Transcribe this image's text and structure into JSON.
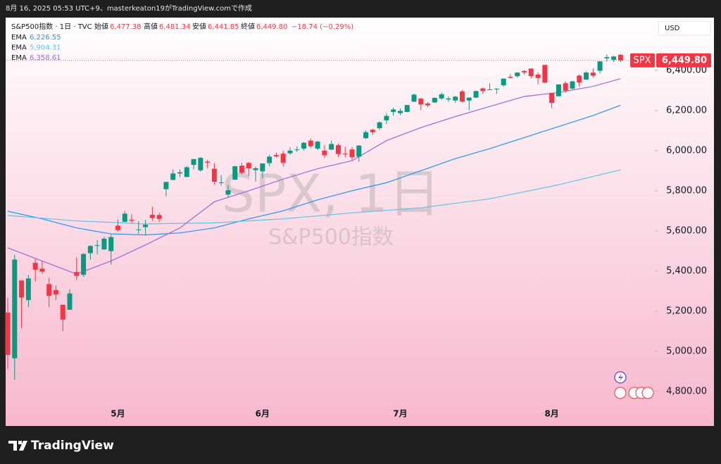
{
  "header": {
    "created": "8月 16, 2025 05:53 UTC+9、masterkeaton19がTradingView.comで作成",
    "currency": "USD",
    "brand": "TradingView"
  },
  "legend": {
    "symbol": "S&P500指数 · 1日 · TVC",
    "open_label": "始値",
    "open": "6,477.38",
    "high_label": "高値",
    "high": "6,481.34",
    "low_label": "安値",
    "low": "6,441.85",
    "close_label": "終値",
    "close": "6,449.80",
    "change": "−18.74 (−0.29%)"
  },
  "chart_data": {
    "type": "candlestick",
    "watermark": "SPX, 1日",
    "watermark_sub": "S&P500指数",
    "categories": [
      null,
      null,
      null,
      null,
      null,
      null,
      null,
      null,
      null,
      null,
      null,
      null,
      null,
      null,
      null,
      null,
      "5月",
      null,
      null,
      null,
      null,
      null,
      null,
      null,
      null,
      null,
      null,
      null,
      null,
      null,
      null,
      null,
      null,
      null,
      null,
      null,
      null,
      "6月",
      null,
      null,
      null,
      null,
      null,
      null,
      null,
      null,
      null,
      null,
      null,
      null,
      null,
      null,
      null,
      null,
      null,
      null,
      null,
      "7月",
      null,
      null,
      null,
      null,
      null,
      null,
      null,
      null,
      null,
      null,
      null,
      null,
      null,
      null,
      null,
      null,
      null,
      null,
      null,
      null,
      null,
      "8月",
      null,
      null,
      null,
      null,
      null,
      null,
      null,
      null,
      null,
      null
    ],
    "open": [
      5193,
      4965,
      5353,
      5255,
      5441,
      5412,
      5335,
      5305,
      5232,
      5207,
      5395,
      5381,
      5489,
      5529,
      5508,
      5499,
      5626,
      5645,
      5655,
      5605,
      5619,
      5680,
      5679,
      5808,
      5854,
      5886,
      5869,
      5929,
      5902,
      5945,
      5910,
      5842,
      5781,
      5855,
      5925,
      5939,
      5903,
      5897,
      5938,
      5978,
      5985,
      5987,
      6004,
      6010,
      6050,
      6010,
      6000,
      6005,
      6027,
      5985,
      6006,
      5970,
      6062,
      6104,
      6112,
      6151,
      6193,
      6187,
      6193,
      6244,
      6259,
      6235,
      6240,
      6260,
      6255,
      6250,
      6295,
      6250,
      6264,
      6310,
      6304,
      6307,
      6326,
      6368,
      6371,
      6397,
      6409,
      6379,
      6427,
      6287,
      6271,
      6336,
      6309,
      6374,
      6354,
      6389,
      6398,
      6460,
      6453,
      6477.38
    ],
    "high": [
      5267,
      5481,
      5353,
      5381,
      5460,
      5450,
      5367,
      5328,
      5232,
      5309,
      5469,
      5489,
      5528,
      5554,
      5571,
      5581,
      5658,
      5700,
      5683,
      5649,
      5655,
      5720,
      5691,
      5844,
      5906,
      5907,
      5924,
      5958,
      5968,
      5954,
      5938,
      5878,
      5829,
      5924,
      5939,
      5943,
      5921,
      5937,
      5981,
      5990,
      5999,
      6016,
      6021,
      6043,
      6060,
      6050,
      6027,
      6050,
      6035,
      6019,
      6018,
      6028,
      6101,
      6109,
      6146,
      6187,
      6215,
      6210,
      6228,
      6284,
      6263,
      6242,
      6265,
      6290,
      6270,
      6273,
      6302,
      6266,
      6299,
      6315,
      6336,
      6310,
      6360,
      6381,
      6390,
      6402,
      6410,
      6390,
      6427,
      6288,
      6330,
      6346,
      6349,
      6379,
      6395,
      6409,
      6446,
      6480,
      6473,
      6481.34
    ],
    "low": [
      4910,
      4857,
      5115,
      5220,
      5348,
      5386,
      5220,
      5255,
      5101,
      5207,
      5356,
      5371,
      5456,
      5483,
      5505,
      5433,
      5597,
      5644,
      5637,
      5587,
      5578,
      5650,
      5644,
      5773,
      5853,
      5868,
      5867,
      5907,
      5895,
      5913,
      5830,
      5826,
      5767,
      5855,
      5882,
      5874,
      5847,
      5862,
      5922,
      5966,
      5921,
      5979,
      5994,
      6001,
      6012,
      6003,
      5964,
      6004,
      5969,
      5967,
      5953,
      5944,
      6058,
      6079,
      6103,
      6132,
      6174,
      6177,
      6191,
      6242,
      6201,
      6217,
      6237,
      6252,
      6243,
      6239,
      6242,
      6201,
      6264,
      6282,
      6302,
      6282,
      6318,
      6360,
      6364,
      6381,
      6361,
      6331,
      6336,
      6212,
      6271,
      6289,
      6304,
      6318,
      6354,
      6364,
      6384,
      6443,
      6441,
      6441.85
    ],
    "close": [
      4982,
      5457,
      5268,
      5363,
      5406,
      5397,
      5276,
      5283,
      5158,
      5288,
      5376,
      5485,
      5525,
      5529,
      5561,
      5569,
      5604,
      5686,
      5650,
      5607,
      5631,
      5664,
      5660,
      5844,
      5886,
      5892,
      5917,
      5958,
      5964,
      5940,
      5845,
      5842,
      5803,
      5922,
      5889,
      5912,
      5912,
      5936,
      5970,
      5971,
      5939,
      6000,
      6006,
      6039,
      6022,
      6045,
      5977,
      6033,
      5983,
      5981,
      5967,
      6025,
      6092,
      6092,
      6141,
      6173,
      6205,
      6198,
      6227,
      6279,
      6230,
      6226,
      6263,
      6281,
      6260,
      6269,
      6244,
      6264,
      6297,
      6297,
      6305,
      6309,
      6359,
      6363,
      6389,
      6390,
      6371,
      6362,
      6339,
      6238,
      6330,
      6299,
      6345,
      6340,
      6389,
      6374,
      6445,
      6466,
      6469,
      6449.8
    ],
    "up_color": "#089981",
    "down_color": "#f23645",
    "series": [
      {
        "name": "EMA",
        "color": "#2196f3",
        "value_label": "6,226.55",
        "x": [
          0,
          5,
          10,
          15,
          20,
          25,
          30,
          35,
          40,
          45,
          50,
          55,
          60,
          65,
          70,
          75,
          80,
          85,
          89
        ],
        "values": [
          5698,
          5660,
          5615,
          5585,
          5580,
          5590,
          5615,
          5660,
          5700,
          5755,
          5800,
          5840,
          5900,
          5960,
          6010,
          6065,
          6120,
          6175,
          6226.55
        ]
      },
      {
        "name": "EMA",
        "color": "#5ec4e8",
        "value_label": "5,904.31",
        "x": [
          0,
          10,
          20,
          30,
          40,
          50,
          60,
          70,
          80,
          89
        ],
        "values": [
          5677,
          5650,
          5635,
          5640,
          5660,
          5690,
          5715,
          5760,
          5830,
          5904.31
        ]
      },
      {
        "name": "EMA",
        "color": "#9c6ad6",
        "value_label": "6,358.61",
        "x": [
          0,
          5,
          10,
          15,
          20,
          25,
          30,
          35,
          40,
          45,
          50,
          55,
          60,
          65,
          70,
          75,
          80,
          85,
          89
        ],
        "values": [
          5516,
          5450,
          5385,
          5450,
          5530,
          5615,
          5745,
          5800,
          5858,
          5910,
          5950,
          6050,
          6115,
          6170,
          6220,
          6270,
          6290,
          6320,
          6358.61
        ]
      }
    ],
    "price_tag": {
      "symbol": "SPX",
      "label": "6,449.80"
    },
    "ylim": [
      4733,
      6663
    ],
    "yticks": [
      {
        "value": 4800,
        "label": "4,800.00"
      },
      {
        "value": 5000,
        "label": "5,000.00"
      },
      {
        "value": 5200,
        "label": "5,200.00"
      },
      {
        "value": 5400,
        "label": "5,400.00"
      },
      {
        "value": 5600,
        "label": "5,600.00"
      },
      {
        "value": 5800,
        "label": "5,800.00"
      },
      {
        "value": 6000,
        "label": "6,000.00"
      },
      {
        "value": 6200,
        "label": "6,200.00"
      },
      {
        "value": 6400,
        "label": "6,400.00"
      }
    ]
  }
}
